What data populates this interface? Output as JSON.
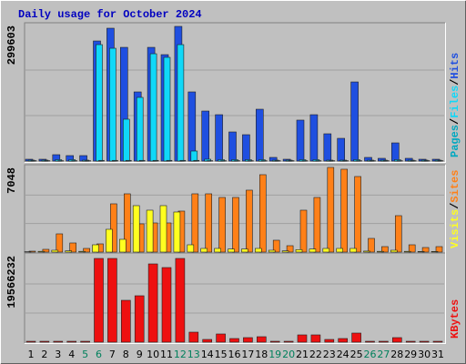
{
  "chart_data": [
    {
      "type": "bar",
      "title": "Daily usage for October 2024",
      "ylim": [
        0,
        299603
      ],
      "yticks": [
        299603
      ],
      "legend_separator": "/",
      "series": [
        {
          "name": "Hits",
          "color": "#1f4fe0",
          "values": [
            4000,
            4000,
            14000,
            12000,
            12000,
            263600,
            291600,
            249600,
            151800,
            249600,
            233600,
            295600,
            151800,
            109800,
            101800,
            63900,
            57900,
            113800,
            8000,
            4000,
            89900,
            101800,
            59900,
            49900,
            173700,
            8000,
            6000,
            39900,
            6000,
            4000,
            4000
          ]
        },
        {
          "name": "Files",
          "color": "#10d8f8",
          "values": [
            2000,
            2000,
            3000,
            3000,
            2000,
            255600,
            247600,
            91900,
            139800,
            235600,
            227700,
            255600,
            22000,
            4000,
            3000,
            3000,
            3000,
            3000,
            2000,
            2000,
            3000,
            3000,
            2000,
            2000,
            3000,
            2000,
            2000,
            3000,
            2000,
            2000,
            2000
          ]
        },
        {
          "name": "Pages",
          "color": "#00a8c0",
          "values": [
            800,
            800,
            800,
            800,
            800,
            1500,
            1500,
            1500,
            1500,
            1500,
            1500,
            1500,
            1500,
            800,
            800,
            800,
            800,
            800,
            800,
            800,
            800,
            800,
            800,
            800,
            800,
            800,
            800,
            800,
            800,
            800,
            800
          ]
        }
      ]
    },
    {
      "type": "bar",
      "ylim": [
        0,
        7048
      ],
      "yticks": [
        7048
      ],
      "legend_separator": "/",
      "series": [
        {
          "name": "Sites",
          "color": "#ff8018",
          "values": [
            75,
            225,
            1500,
            750,
            300,
            675,
            3975,
            4800,
            2325,
            2400,
            2400,
            3375,
            4800,
            4800,
            4500,
            4500,
            5100,
            6375,
            975,
            525,
            3450,
            4500,
            6975,
            6825,
            6225,
            1125,
            450,
            3000,
            600,
            375,
            450
          ]
        },
        {
          "name": "Visits",
          "color": "#ffff20",
          "values": [
            30,
            60,
            150,
            100,
            60,
            600,
            1875,
            1050,
            3825,
            3450,
            3825,
            3300,
            600,
            300,
            300,
            250,
            250,
            300,
            150,
            100,
            200,
            250,
            300,
            300,
            300,
            80,
            60,
            150,
            60,
            50,
            50
          ]
        }
      ]
    },
    {
      "type": "bar",
      "ylim": [
        0,
        19566232
      ],
      "yticks": [
        19566232
      ],
      "categories": [
        1,
        2,
        3,
        4,
        5,
        6,
        7,
        8,
        9,
        10,
        11,
        12,
        13,
        14,
        15,
        16,
        17,
        18,
        19,
        20,
        21,
        22,
        23,
        24,
        25,
        26,
        27,
        28,
        29,
        30,
        31
      ],
      "category_colors": [
        "#000000",
        "#000000",
        "#000000",
        "#000000",
        "#00805c",
        "#00805c",
        "#000000",
        "#000000",
        "#000000",
        "#000000",
        "#000000",
        "#00805c",
        "#00805c",
        "#000000",
        "#000000",
        "#000000",
        "#000000",
        "#000000",
        "#00805c",
        "#00805c",
        "#000000",
        "#000000",
        "#000000",
        "#000000",
        "#000000",
        "#00805c",
        "#00805c",
        "#000000",
        "#000000",
        "#000000",
        "#000000"
      ],
      "series": [
        {
          "name": "KBytes",
          "color": "#ee1010",
          "values": [
            200000,
            200000,
            200000,
            200000,
            200000,
            18751000,
            18751000,
            9375500,
            10394600,
            17528100,
            16712800,
            18751000,
            2242000,
            611400,
            1834300,
            815300,
            1019100,
            1222900,
            203800,
            203800,
            1630500,
            1630500,
            611400,
            815300,
            2038200,
            203800,
            203800,
            1019100,
            203800,
            203800,
            203800
          ]
        }
      ]
    }
  ]
}
